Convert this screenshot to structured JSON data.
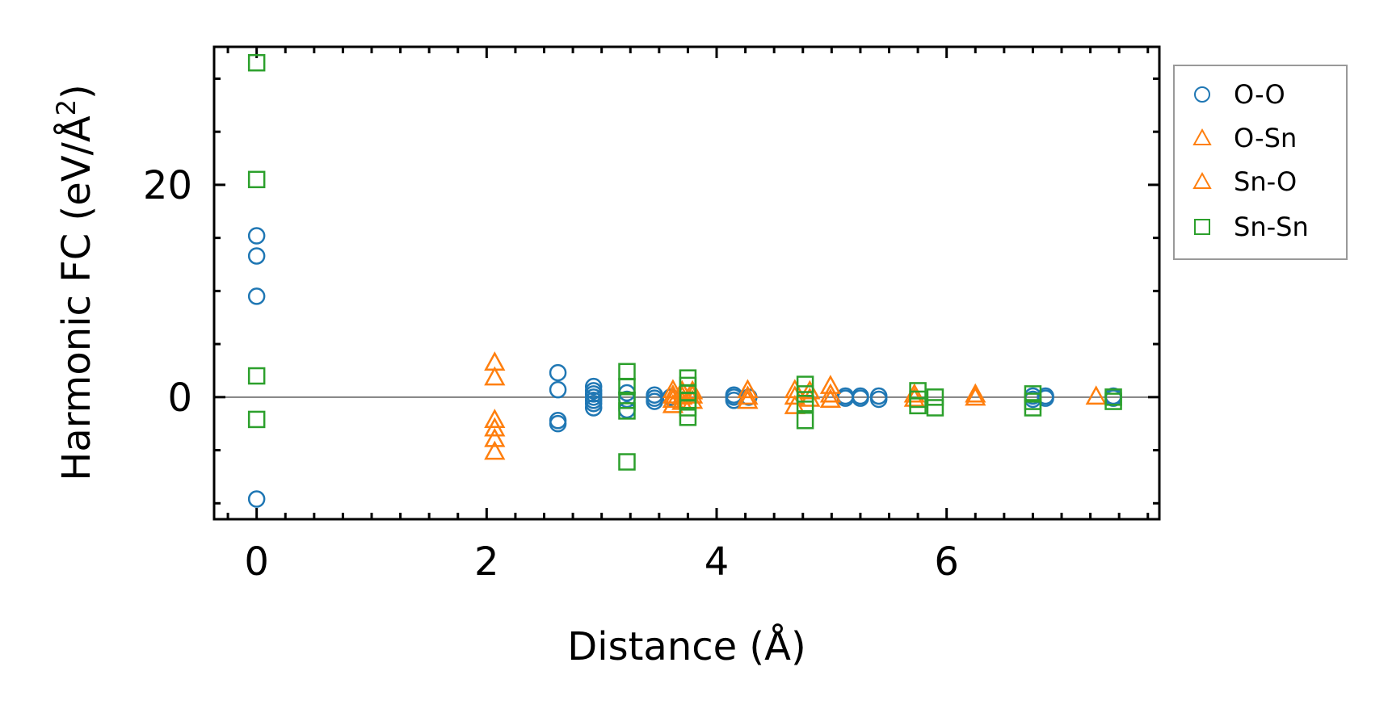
{
  "chart_data": {
    "type": "scatter",
    "xlabel": "Distance (Å)",
    "ylabel": "Harmonic FC (eV/Å²)",
    "ylabel_main": "Harmonic FC (eV/Å",
    "ylabel_sup": "2",
    "ylabel_close": ")",
    "xlim": [
      -0.37,
      7.85
    ],
    "ylim": [
      -11.5,
      33.0
    ],
    "xticks": [
      0,
      2,
      4,
      6
    ],
    "xtick_labels": [
      "0",
      "2",
      "4",
      "6"
    ],
    "xminor": [
      -0.25,
      0.25,
      0.5,
      0.75,
      1,
      1.25,
      1.5,
      1.75,
      2.25,
      2.5,
      2.75,
      3,
      3.25,
      3.5,
      3.75,
      4.25,
      4.5,
      4.75,
      5,
      5.25,
      5.5,
      5.75,
      6.25,
      6.5,
      6.75,
      7,
      7.25,
      7.5,
      7.75
    ],
    "yticks": [
      0,
      20
    ],
    "ytick_labels": [
      "0",
      "20"
    ],
    "yminor": [
      -10,
      -5,
      5,
      10,
      15,
      25,
      30
    ],
    "zero_line": 0,
    "legend": {
      "placement": "outside-right-top",
      "entries": [
        {
          "label": "O-O",
          "marker": "circle",
          "color": "#1f77b4"
        },
        {
          "label": "O-Sn",
          "marker": "triangle",
          "color": "#ff7f0e"
        },
        {
          "label": "Sn-O",
          "marker": "triangle",
          "color": "#ff7f0e"
        },
        {
          "label": "Sn-Sn",
          "marker": "square",
          "color": "#2ca02c"
        }
      ]
    },
    "series": [
      {
        "name": "O-O",
        "marker": "circle",
        "color": "#1f77b4",
        "x": [
          0,
          0,
          0,
          0,
          2.62,
          2.62,
          2.62,
          2.62,
          2.93,
          2.93,
          2.93,
          2.93,
          2.93,
          2.93,
          2.93,
          3.22,
          3.22,
          3.22,
          3.46,
          3.46,
          3.46,
          3.6,
          4.15,
          4.15,
          4.15,
          4.28,
          5.12,
          5.12,
          5.25,
          5.25,
          5.41,
          5.41,
          6.75,
          6.75,
          6.86,
          6.86,
          7.45,
          7.45
        ],
        "y": [
          15.2,
          13.3,
          9.5,
          -9.6,
          2.3,
          0.7,
          -2.2,
          -2.5,
          1.0,
          0.6,
          0.3,
          0,
          -0.3,
          -0.6,
          -1.0,
          0.4,
          -0.2,
          -1.2,
          0.2,
          -0.1,
          -0.4,
          0,
          0.2,
          0,
          -0.3,
          0,
          0.1,
          -0.1,
          0.1,
          -0.1,
          0.1,
          -0.2,
          0.1,
          -0.2,
          0.1,
          -0.1,
          0.1,
          -0.1
        ]
      },
      {
        "name": "O-Sn",
        "marker": "triangle",
        "color": "#ff7f0e",
        "x": [
          2.07,
          2.07,
          2.07,
          2.07,
          2.07,
          2.07,
          3.62,
          3.62,
          3.62,
          3.62,
          3.7,
          3.7,
          3.7,
          3.79,
          3.79,
          3.79,
          4.27,
          4.27,
          4.27,
          4.68,
          4.68,
          4.68,
          4.81,
          4.81,
          4.99,
          4.99,
          4.99,
          5.72,
          5.72,
          6.25,
          6.25,
          7.3
        ],
        "y": [
          3.2,
          1.8,
          -2.2,
          -3.0,
          -4.0,
          -5.2,
          0.6,
          0.1,
          -0.3,
          -0.8,
          0.5,
          0,
          -0.5,
          0.5,
          0.1,
          -0.4,
          0.6,
          0,
          -0.4,
          0.6,
          0,
          -0.9,
          0.5,
          -0.2,
          1.0,
          0.2,
          -0.3,
          0.2,
          -0.2,
          0.2,
          -0.1,
          0
        ]
      },
      {
        "name": "Sn-O",
        "marker": "triangle",
        "color": "#ff7f0e",
        "x": [],
        "y": []
      },
      {
        "name": "Sn-Sn",
        "marker": "square",
        "color": "#2ca02c",
        "x": [
          0,
          0,
          0,
          0,
          3.22,
          3.22,
          3.22,
          3.22,
          3.22,
          3.75,
          3.75,
          3.75,
          3.75,
          3.75,
          3.75,
          4.77,
          4.77,
          4.77,
          4.77,
          5.75,
          5.75,
          5.75,
          5.9,
          5.9,
          6.75,
          6.75,
          6.75,
          7.45,
          7.45
        ],
        "y": [
          31.5,
          20.5,
          2.0,
          -2.1,
          2.4,
          1.0,
          -0.3,
          -1.3,
          -6.1,
          1.8,
          1.1,
          0.4,
          -0.3,
          -1.0,
          -1.9,
          1.2,
          0.3,
          -0.6,
          -2.2,
          0.6,
          -0.2,
          -0.8,
          0,
          -1.0,
          0.3,
          -0.4,
          -1.0,
          0,
          -0.4
        ]
      }
    ]
  }
}
